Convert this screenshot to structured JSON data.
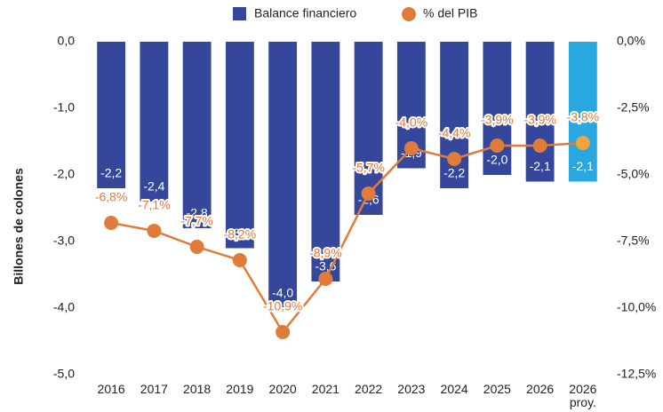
{
  "chart_data": {
    "type": "bar-line",
    "legend_position": "top",
    "y_label": "Billones de colones",
    "categories": [
      "2016",
      "2017",
      "2018",
      "2019",
      "2020",
      "2021",
      "2022",
      "2023",
      "2024",
      "2025",
      "2026",
      "2026 proy."
    ],
    "series": [
      {
        "name": "Balance financiero",
        "type": "bar",
        "color": "#34479a",
        "colors": [
          "#34479a",
          "#34479a",
          "#34479a",
          "#34479a",
          "#34479a",
          "#34479a",
          "#34479a",
          "#34479a",
          "#34479a",
          "#34479a",
          "#34479a",
          "#29a8e0"
        ],
        "values": [
          -2.2,
          -2.4,
          -2.8,
          -3.1,
          -4.0,
          -3.6,
          -2.6,
          -1.9,
          -2.2,
          -2.0,
          -2.1,
          -2.1
        ],
        "value_labels": [
          "-2,2",
          "-2,4",
          "-2,8",
          "-3,1",
          "-4,0",
          "-3,6",
          "-2,6",
          "-1,9",
          "-2,2",
          "-2,0",
          "-2,1",
          "-2,1"
        ]
      },
      {
        "name": "% del PIB",
        "type": "line",
        "axis": "y2",
        "color": "#e07b39",
        "marker_colors": [
          "#e07b39",
          "#e07b39",
          "#e07b39",
          "#e07b39",
          "#e07b39",
          "#e07b39",
          "#e07b39",
          "#e07b39",
          "#e07b39",
          "#e07b39",
          "#e07b39",
          "#f2a33a"
        ],
        "values": [
          -6.8,
          -7.1,
          -7.7,
          -8.2,
          -10.9,
          -8.9,
          -5.7,
          -4.0,
          -4.4,
          -3.9,
          -3.9,
          -3.8
        ],
        "value_labels": [
          "-6,8%",
          "-7,1%",
          "-7,7%",
          "-8,2%",
          "-10,9%",
          "-8,9%",
          "-5,7%",
          "-4,0%",
          "-4,4%",
          "-3,9%",
          "-3,9%",
          "-3,8%"
        ]
      }
    ],
    "ylim": [
      -5,
      0
    ],
    "yticks": [
      {
        "value": 0,
        "label": "0,0"
      },
      {
        "value": -1,
        "label": "-1,0"
      },
      {
        "value": -2,
        "label": "-2,0"
      },
      {
        "value": -3,
        "label": "-3,0"
      },
      {
        "value": -4,
        "label": "-4,0"
      },
      {
        "value": -5,
        "label": "-5,0"
      }
    ],
    "y2lim": [
      -12.5,
      0
    ],
    "y2ticks": [
      {
        "value": 0,
        "label": "0,0%"
      },
      {
        "value": -2.5,
        "label": "-2,5%"
      },
      {
        "value": -5,
        "label": "-5,0%"
      },
      {
        "value": -7.5,
        "label": "-7,5%"
      },
      {
        "value": -10,
        "label": "-10,0%"
      },
      {
        "value": -12.5,
        "label": "-12,5%"
      }
    ]
  }
}
